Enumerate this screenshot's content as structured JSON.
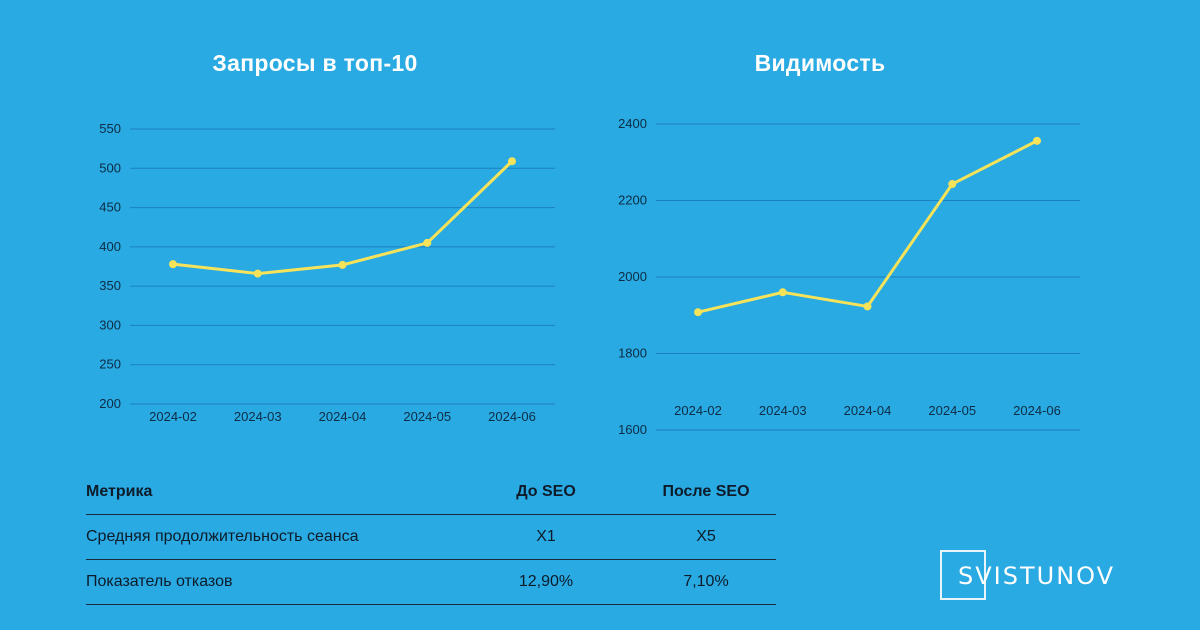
{
  "chart_data": [
    {
      "type": "line",
      "title": "Запросы в топ-10",
      "categories": [
        "2024-02",
        "2024-03",
        "2024-04",
        "2024-05",
        "2024-06"
      ],
      "values": [
        378,
        366,
        377,
        405,
        509
      ],
      "yticks": [
        "200",
        "250",
        "300",
        "350",
        "400",
        "450",
        "500",
        "550"
      ],
      "ylim": [
        200,
        550
      ],
      "grid": true,
      "line_color": "#f7e35a"
    },
    {
      "type": "line",
      "title": "Видимость",
      "categories": [
        "2024-02",
        "2024-03",
        "2024-04",
        "2024-05",
        "2024-06"
      ],
      "values": [
        1908,
        1960,
        1923,
        2243,
        2356
      ],
      "yticks": [
        "1600",
        "1800",
        "2000",
        "2200",
        "2400"
      ],
      "ylim": [
        1600,
        2400
      ],
      "grid": true,
      "line_color": "#f7e35a"
    }
  ],
  "table": {
    "headers": [
      "Метрика",
      "До SEO",
      "После SEO"
    ],
    "rows": [
      [
        "Средняя продолжительность сеанса",
        "X1",
        "X5"
      ],
      [
        "Показатель отказов",
        "12,90%",
        "7,10%"
      ]
    ]
  },
  "logo": {
    "text": "SVISTUNOV"
  },
  "colors": {
    "background": "#29aae2",
    "line": "#f7e35a",
    "grid": "#1b80c0"
  }
}
